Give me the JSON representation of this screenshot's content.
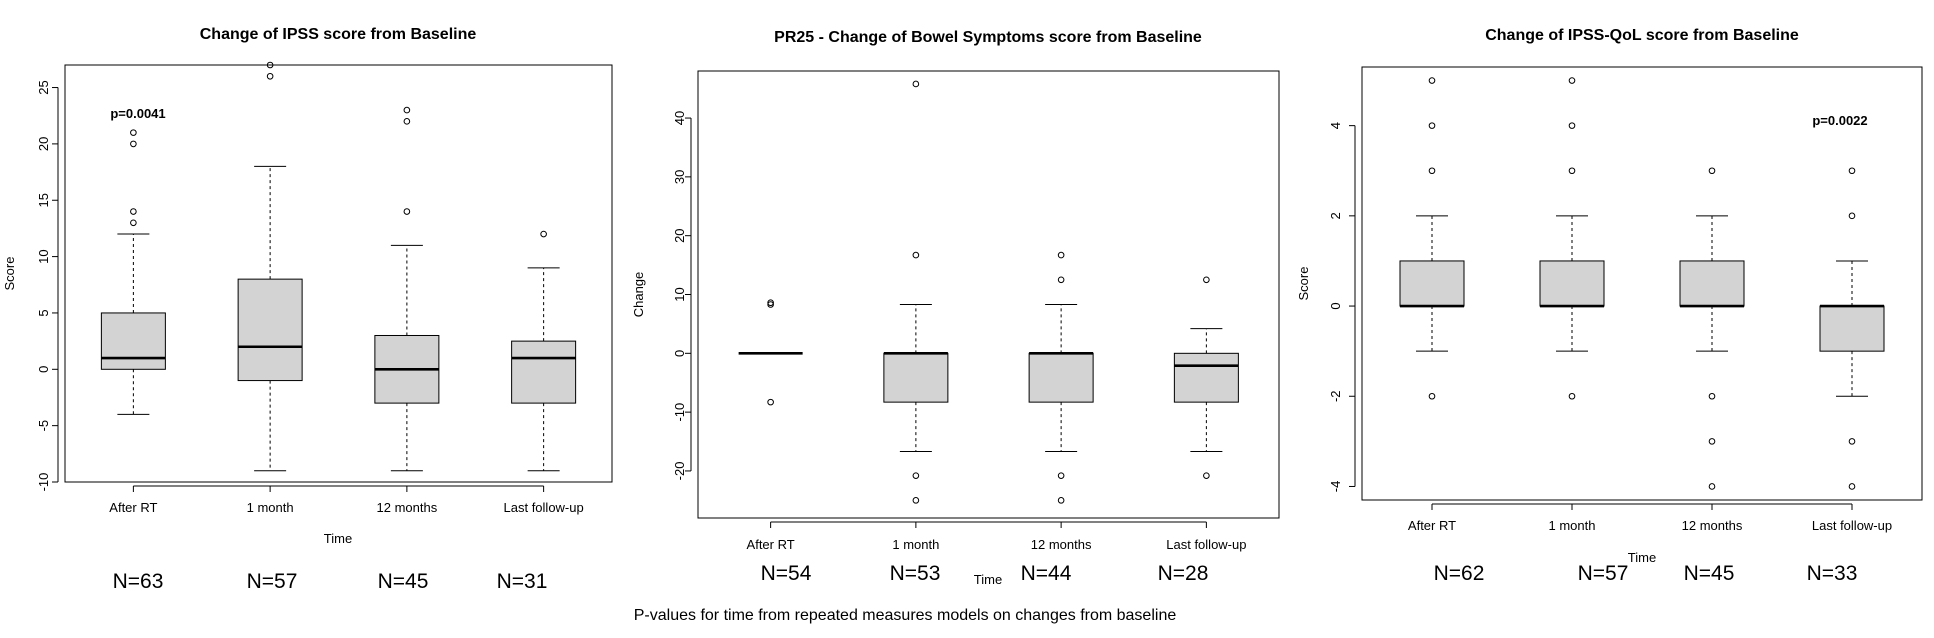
{
  "footnote": "P-values for time from repeated measures models on changes from baseline",
  "chart_data": [
    {
      "type": "boxplot",
      "title": "Change of IPSS score from Baseline",
      "xlabel": "Time",
      "ylabel": "Score",
      "ylim": [
        -10,
        27
      ],
      "yticks": [
        -10,
        -5,
        0,
        5,
        10,
        15,
        20,
        25
      ],
      "categories": [
        "After RT",
        "1 month",
        "12 months",
        "Last follow-up"
      ],
      "annotation": "p=0.0041",
      "n_labels": [
        "N=63",
        "N=57",
        "N=45",
        "N=31"
      ],
      "boxes": [
        {
          "whisker_low": -4,
          "q1": 0,
          "median": 1,
          "q3": 5,
          "whisker_high": 12,
          "outliers": [
            13,
            14,
            20,
            21
          ]
        },
        {
          "whisker_low": -9,
          "q1": -1,
          "median": 2,
          "q3": 8,
          "whisker_high": 18,
          "outliers": [
            26,
            27
          ]
        },
        {
          "whisker_low": -9,
          "q1": -3,
          "median": 0,
          "q3": 3,
          "whisker_high": 11,
          "outliers": [
            14,
            22,
            23
          ]
        },
        {
          "whisker_low": -9,
          "q1": -3,
          "median": 1,
          "q3": 2.5,
          "whisker_high": 9,
          "outliers": [
            12
          ]
        }
      ]
    },
    {
      "type": "boxplot",
      "title": "PR25 - Change of Bowel Symptoms score from Baseline",
      "xlabel": "Time",
      "ylabel": "Change",
      "ylim": [
        -28,
        48
      ],
      "yticks": [
        -20,
        -10,
        0,
        10,
        20,
        30,
        40
      ],
      "categories": [
        "After RT",
        "1 month",
        "12 months",
        "Last follow-up"
      ],
      "annotation": "",
      "n_labels": [
        "N=54",
        "N=53",
        "N=44",
        "N=28"
      ],
      "boxes": [
        {
          "whisker_low": 0,
          "q1": 0,
          "median": 0,
          "q3": 0,
          "whisker_high": 0,
          "outliers": [
            -8.3,
            8.3,
            8.6
          ]
        },
        {
          "whisker_low": -16.7,
          "q1": -8.3,
          "median": 0,
          "q3": 0,
          "whisker_high": 8.3,
          "outliers": [
            -25,
            -20.8,
            16.7,
            45.8
          ]
        },
        {
          "whisker_low": -16.7,
          "q1": -8.3,
          "median": 0,
          "q3": 0,
          "whisker_high": 8.3,
          "outliers": [
            -25,
            -20.8,
            12.5,
            16.7
          ]
        },
        {
          "whisker_low": -16.7,
          "q1": -8.3,
          "median": -2.1,
          "q3": 0,
          "whisker_high": 4.2,
          "outliers": [
            -20.8,
            12.5
          ]
        }
      ]
    },
    {
      "type": "boxplot",
      "title": "Change of IPSS-QoL score from Baseline",
      "xlabel": "Time",
      "ylabel": "Score",
      "ylim": [
        -4.3,
        5.3
      ],
      "yticks": [
        -4,
        -2,
        0,
        2,
        4
      ],
      "categories": [
        "After RT",
        "1 month",
        "12 months",
        "Last follow-up"
      ],
      "annotation": "p=0.0022",
      "n_labels": [
        "N=62",
        "N=57",
        "N=45",
        "N=33"
      ],
      "boxes": [
        {
          "whisker_low": -1,
          "q1": 0,
          "median": 0,
          "q3": 1,
          "whisker_high": 2,
          "outliers": [
            -2,
            3,
            4,
            5
          ]
        },
        {
          "whisker_low": -1,
          "q1": 0,
          "median": 0,
          "q3": 1,
          "whisker_high": 2,
          "outliers": [
            -2,
            3,
            4,
            5
          ]
        },
        {
          "whisker_low": -1,
          "q1": 0,
          "median": 0,
          "q3": 1,
          "whisker_high": 2,
          "outliers": [
            -4,
            -3,
            -2,
            3
          ]
        },
        {
          "whisker_low": -2,
          "q1": -1,
          "median": 0,
          "q3": 0,
          "whisker_high": 1,
          "outliers": [
            -4,
            -3,
            2,
            3
          ]
        }
      ]
    }
  ]
}
